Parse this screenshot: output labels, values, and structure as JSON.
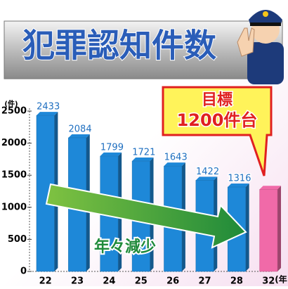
{
  "chart_data": {
    "type": "bar",
    "title": "犯罪認知件数",
    "y_unit": "(件)",
    "x_unit": "(年",
    "categories": [
      "22",
      "23",
      "24",
      "25",
      "26",
      "27",
      "28",
      "32"
    ],
    "values": [
      2433,
      2084,
      1799,
      1721,
      1643,
      1422,
      1316,
      1280
    ],
    "colors": [
      "#1e88d8",
      "#1e88d8",
      "#1e88d8",
      "#1e88d8",
      "#1e88d8",
      "#1e88d8",
      "#1e88d8",
      "#f06aa8"
    ],
    "ylim": [
      0,
      2500
    ],
    "yticks": [
      0,
      500,
      1000,
      1500,
      2000,
      2500
    ],
    "annotations": {
      "goal_title": "目標",
      "goal_text": "1200件台",
      "trend": "年々減少"
    }
  }
}
